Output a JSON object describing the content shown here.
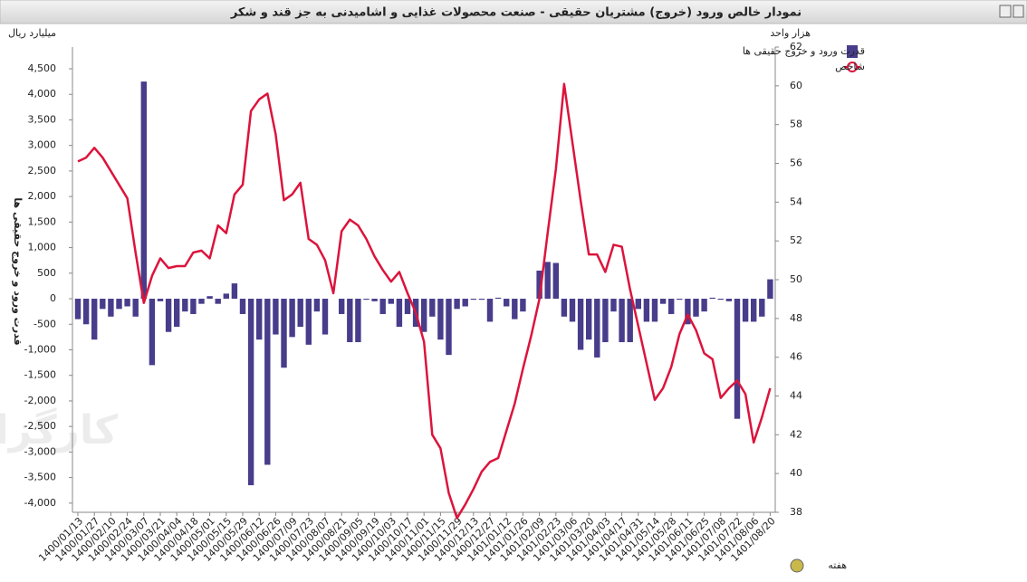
{
  "chart_data": {
    "type": "bar-line",
    "title": "نمودار خالص ورود (خروج) مشتریان حقیقی - صنعت محصولات غذایی و اشامیدنی به جز قند و شکر",
    "y_label": "قدرت ورود و خروج حقیقی ها",
    "y_unit": "میلیارد ریال",
    "y2_unit": "هزار واحد",
    "x_label": "هفته",
    "watermark": "کارگزار بورس اوراق بهادار، کالا و انرژی",
    "categories": [
      "1400/01/13",
      null,
      "1400/01/27",
      null,
      "1400/02/10",
      null,
      "1400/02/24",
      null,
      "1400/03/07",
      null,
      "1400/03/21",
      null,
      "1400/04/04",
      null,
      "1400/04/18",
      null,
      "1400/05/01",
      null,
      "1400/05/15",
      null,
      "1400/05/29",
      null,
      "1400/06/12",
      null,
      "1400/06/26",
      null,
      "1400/07/09",
      null,
      "1400/07/23",
      null,
      "1400/08/07",
      null,
      "1400/08/21",
      null,
      "1400/09/05",
      null,
      "1400/09/19",
      null,
      "1400/10/03",
      null,
      "1400/10/17",
      null,
      "1400/11/01",
      null,
      "1400/11/15",
      null,
      "1400/11/29",
      null,
      "1400/12/13",
      null,
      "1400/12/27",
      null,
      "1401/01/12",
      null,
      "1401/01/26",
      null,
      "1401/02/09",
      null,
      "1401/02/23",
      null,
      "1401/03/06",
      null,
      "1401/03/20",
      null,
      "1401/04/03",
      null,
      "1401/04/17",
      null,
      "1401/04/31",
      null,
      "1401/05/14",
      null,
      "1401/05/28",
      null,
      "1401/06/11",
      null,
      "1401/06/25",
      null,
      "1401/07/08",
      null,
      "1401/07/22",
      null,
      "1401/08/06",
      null,
      "1401/08/20"
    ],
    "series": [
      {
        "name": "قدرت ورود و خروج حقیقی ها",
        "color": "#483d8b",
        "type": "bar",
        "values": [
          -400,
          -500,
          -800,
          -200,
          -350,
          -200,
          -150,
          -350,
          4250,
          -1300,
          -50,
          -650,
          -550,
          -250,
          -300,
          -100,
          50,
          -100,
          100,
          300,
          -300,
          -3650,
          -800,
          -3250,
          -700,
          -1350,
          -750,
          -550,
          -900,
          -250,
          -700,
          0,
          -300,
          -850,
          -850,
          -20,
          -50,
          -300,
          -100,
          -550,
          -300,
          -550,
          -650,
          -350,
          -800,
          -1100,
          -200,
          -150,
          -20,
          -20,
          -450,
          20,
          -150,
          -400,
          -250,
          0,
          550,
          720,
          700,
          -350,
          -450,
          -1000,
          -800,
          -1150,
          -850,
          -250,
          -850,
          -850,
          -200,
          -450,
          -450,
          -100,
          -300,
          -20,
          -500,
          -350,
          -250,
          20,
          -20,
          -50,
          -2350,
          -450,
          -450,
          -350,
          380
        ]
      },
      {
        "name": "شاخص",
        "color": "#dc143c",
        "type": "line",
        "axis": "y2",
        "values": [
          56.1,
          56.3,
          56.8,
          56.3,
          55.6,
          54.9,
          54.2,
          51.4,
          48.8,
          50.2,
          51.1,
          50.6,
          50.7,
          50.7,
          51.4,
          51.5,
          51.1,
          52.8,
          52.4,
          54.4,
          54.9,
          58.7,
          59.3,
          59.6,
          57.5,
          54.1,
          54.4,
          55.0,
          52.1,
          51.8,
          51.0,
          49.3,
          52.5,
          53.1,
          52.8,
          52.1,
          51.2,
          50.5,
          49.9,
          50.4,
          49.3,
          48.3,
          46.8,
          42.0,
          41.3,
          39.0,
          37.7,
          38.4,
          39.2,
          40.1,
          40.6,
          40.8,
          42.2,
          43.6,
          45.4,
          47.1,
          49.0,
          52.4,
          55.7,
          60.1,
          57.1,
          54.1,
          51.3,
          51.3,
          50.4,
          51.8,
          51.7,
          49.5,
          47.6,
          45.7,
          43.8,
          44.4,
          45.5,
          47.2,
          48.2,
          47.4,
          46.2,
          45.9,
          43.9,
          44.4,
          44.8,
          44.1,
          41.6,
          42.9,
          44.4
        ]
      }
    ],
    "ylim": [
      -4180,
      4925
    ],
    "yticks": [
      {
        "value": -4000,
        "label": "-4,000"
      },
      {
        "value": -3500,
        "label": "-3,500"
      },
      {
        "value": -3000,
        "label": "-3,000"
      },
      {
        "value": -2500,
        "label": "-2,500"
      },
      {
        "value": -2000,
        "label": "-2,000"
      },
      {
        "value": -1500,
        "label": "-1,500"
      },
      {
        "value": -1000,
        "label": "-1,000"
      },
      -500,
      0,
      500,
      {
        "value": 1000,
        "label": "1,000"
      },
      {
        "value": 1500,
        "label": "1,500"
      },
      {
        "value": 2000,
        "label": "2,000"
      },
      {
        "value": 2500,
        "label": "2,500"
      },
      {
        "value": 3000,
        "label": "3,000"
      },
      {
        "value": 3500,
        "label": "3,500"
      },
      {
        "value": 4000,
        "label": "4,000"
      },
      {
        "value": 4500,
        "label": "4,500"
      }
    ],
    "y2lim": [
      38,
      62
    ],
    "y2ticks": [
      38,
      40,
      42,
      44,
      46,
      48,
      50,
      52,
      54,
      56,
      58,
      60,
      62
    ],
    "legend": "top-right"
  }
}
